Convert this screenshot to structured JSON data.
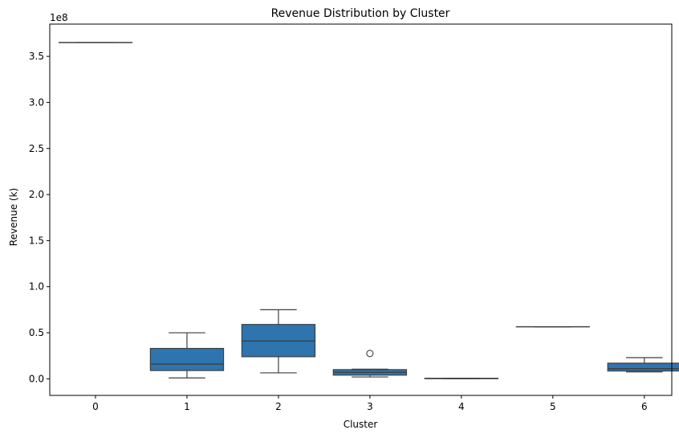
{
  "chart_data": {
    "type": "box",
    "title": "Revenue Distribution by Cluster",
    "xlabel": "Cluster",
    "ylabel": "Revenue (k)",
    "y_offset_label": "1e8",
    "ylim": [
      -18000000,
      385000000
    ],
    "yticks": [
      0,
      50000000,
      100000000,
      150000000,
      200000000,
      250000000,
      300000000,
      350000000
    ],
    "ytick_labels": [
      "0.0",
      "0.5",
      "1.0",
      "1.5",
      "2.0",
      "2.5",
      "3.0",
      "3.5"
    ],
    "grid": false,
    "box_color": "#2e74ae",
    "edge_color": "#3f3f3f",
    "categories": [
      "0",
      "1",
      "2",
      "3",
      "4",
      "5",
      "6"
    ],
    "boxes": [
      {
        "min": 365000000,
        "q1": 365000000,
        "median": 365000000,
        "q3": 365000000,
        "max": 365000000,
        "outliers": []
      },
      {
        "min": 1000000,
        "q1": 9000000,
        "median": 16000000,
        "q3": 33000000,
        "max": 50000000,
        "outliers": []
      },
      {
        "min": 6500000,
        "q1": 24000000,
        "median": 41000000,
        "q3": 59000000,
        "max": 75000000,
        "outliers": []
      },
      {
        "min": 2000000,
        "q1": 4000000,
        "median": 7000000,
        "q3": 10000000,
        "max": 10500000,
        "outliers": [
          27500000
        ]
      },
      {
        "min": 200000,
        "q1": 200000,
        "median": 400000,
        "q3": 600000,
        "max": 600000,
        "outliers": []
      },
      {
        "min": 56500000,
        "q1": 56500000,
        "median": 56500000,
        "q3": 56500000,
        "max": 56500000,
        "outliers": []
      },
      {
        "min": 7500000,
        "q1": 8500000,
        "median": 11000000,
        "q3": 17000000,
        "max": 23000000,
        "outliers": []
      }
    ]
  }
}
